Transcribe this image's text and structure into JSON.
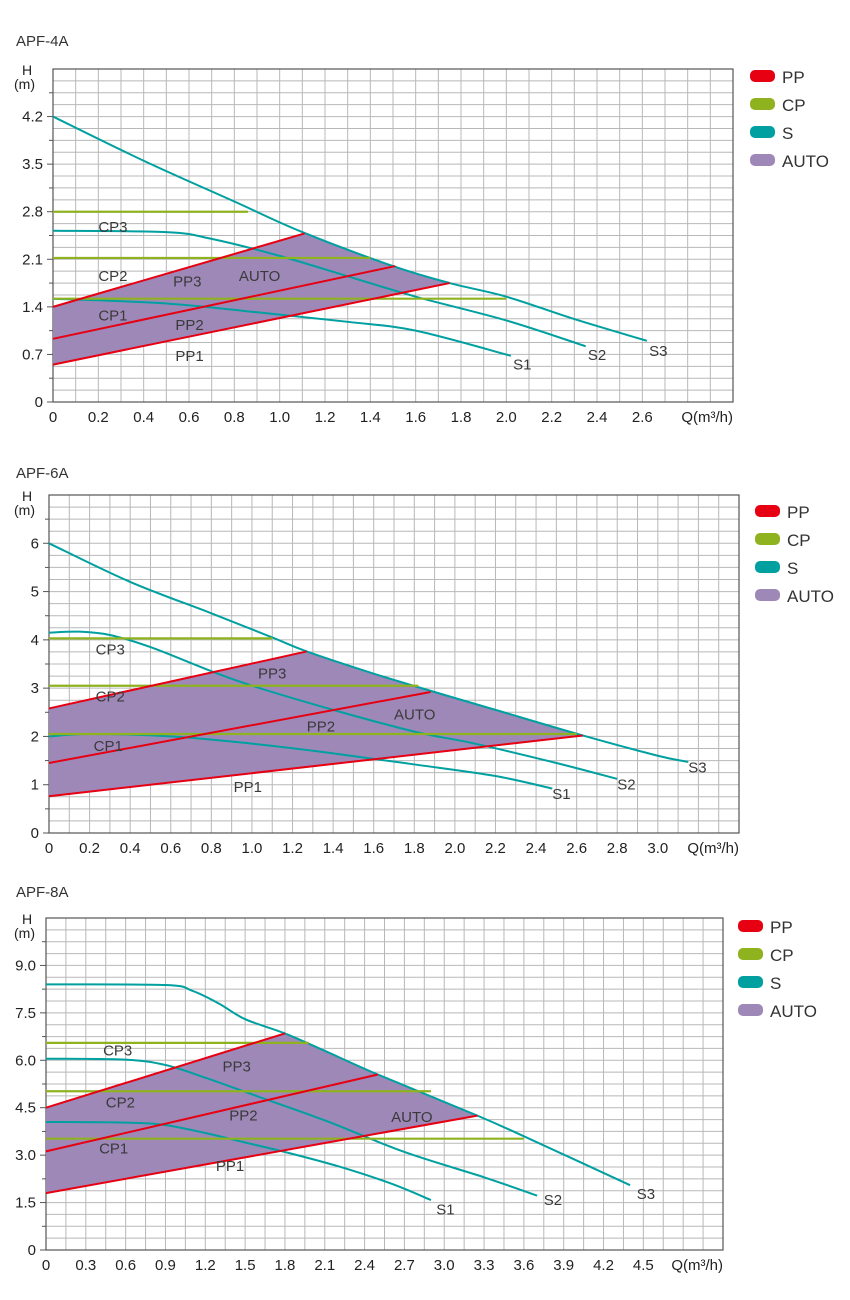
{
  "colors": {
    "PP": "#e60012",
    "CP": "#8fb21f",
    "S": "#00a0a0",
    "AUTO": "#9e88b8",
    "grid": "#b8b8b8",
    "axis": "#555555"
  },
  "legend": [
    {
      "key": "PP",
      "label": "PP"
    },
    {
      "key": "CP",
      "label": "CP"
    },
    {
      "key": "S",
      "label": "S"
    },
    {
      "key": "AUTO",
      "label": "AUTO"
    }
  ],
  "chart_data": [
    {
      "type": "line",
      "title": "APF-4A",
      "ylabel_top": "H",
      "ylabel_unit": "(m)",
      "xlabel": "Q(m³/h)",
      "xlim": [
        0,
        3.0
      ],
      "ylim": [
        0,
        4.9
      ],
      "grid": true,
      "legend_position": "right",
      "xticks": [
        "0",
        "0.2",
        "0.4",
        "0.6",
        "0.8",
        "1.0",
        "1.2",
        "1.4",
        "1.6",
        "1.8",
        "2.0",
        "2.2",
        "2.4",
        "2.6"
      ],
      "xtick_values": [
        0,
        0.2,
        0.4,
        0.6,
        0.8,
        1.0,
        1.2,
        1.4,
        1.6,
        1.8,
        2.0,
        2.2,
        2.4,
        2.6
      ],
      "yticks": [
        "0",
        "0.7",
        "1.4",
        "2.1",
        "2.8",
        "3.5",
        "4.2"
      ],
      "ytick_values": [
        0,
        0.7,
        1.4,
        2.1,
        2.8,
        3.5,
        4.2
      ],
      "grid_step_x": 0.1,
      "grid_step_y": 0.175,
      "auto_region": [
        [
          0,
          0.55
        ],
        [
          0,
          1.4
        ],
        [
          1.11,
          2.48
        ],
        [
          1.5,
          2.0
        ],
        [
          1.75,
          1.75
        ]
      ],
      "series": [
        {
          "name": "S3",
          "kind": "S",
          "points": [
            [
              0,
              4.2
            ],
            [
              0.4,
              3.55
            ],
            [
              0.8,
              2.95
            ],
            [
              1.1,
              2.5
            ],
            [
              1.5,
              2.0
            ],
            [
              1.75,
              1.75
            ],
            [
              2.0,
              1.55
            ],
            [
              2.3,
              1.22
            ],
            [
              2.62,
              0.9
            ]
          ]
        },
        {
          "name": "S2",
          "kind": "S",
          "points": [
            [
              0,
              2.52
            ],
            [
              0.5,
              2.5
            ],
            [
              0.7,
              2.4
            ],
            [
              1.0,
              2.15
            ],
            [
              1.3,
              1.85
            ],
            [
              1.6,
              1.55
            ],
            [
              2.0,
              1.2
            ],
            [
              2.35,
              0.82
            ]
          ]
        },
        {
          "name": "S1",
          "kind": "S",
          "points": [
            [
              0,
              1.52
            ],
            [
              0.5,
              1.45
            ],
            [
              0.9,
              1.32
            ],
            [
              1.3,
              1.18
            ],
            [
              1.6,
              1.05
            ],
            [
              2.02,
              0.68
            ]
          ]
        },
        {
          "name": "CP3",
          "kind": "CP",
          "points": [
            [
              0,
              2.8
            ],
            [
              0.86,
              2.8
            ]
          ]
        },
        {
          "name": "CP2",
          "kind": "CP",
          "points": [
            [
              0,
              2.12
            ],
            [
              1.4,
              2.12
            ]
          ]
        },
        {
          "name": "CP1",
          "kind": "CP",
          "points": [
            [
              0,
              1.52
            ],
            [
              2.0,
              1.52
            ]
          ]
        },
        {
          "name": "PP3",
          "kind": "PP",
          "points": [
            [
              0,
              1.4
            ],
            [
              1.11,
              2.48
            ]
          ]
        },
        {
          "name": "PP2",
          "kind": "PP",
          "points": [
            [
              0,
              0.93
            ],
            [
              1.51,
              2.0
            ]
          ]
        },
        {
          "name": "PP1",
          "kind": "PP",
          "points": [
            [
              0,
              0.55
            ],
            [
              1.75,
              1.75
            ]
          ]
        }
      ],
      "annotations": [
        {
          "text": "CP3",
          "x": 0.2,
          "y": 2.5
        },
        {
          "text": "CP2",
          "x": 0.2,
          "y": 1.78
        },
        {
          "text": "CP1",
          "x": 0.2,
          "y": 1.2
        },
        {
          "text": "PP3",
          "x": 0.53,
          "y": 1.7
        },
        {
          "text": "PP2",
          "x": 0.54,
          "y": 1.06
        },
        {
          "text": "PP1",
          "x": 0.54,
          "y": 0.6
        },
        {
          "text": "AUTO",
          "x": 0.82,
          "y": 1.78
        },
        {
          "text": "S1",
          "x": 2.03,
          "y": 0.48
        },
        {
          "text": "S2",
          "x": 2.36,
          "y": 0.62
        },
        {
          "text": "S3",
          "x": 2.63,
          "y": 0.68
        }
      ]
    },
    {
      "type": "line",
      "title": "APF-6A",
      "ylabel_top": "H",
      "ylabel_unit": "(m)",
      "xlabel": "Q(m³/h)",
      "xlim": [
        0,
        3.4
      ],
      "ylim": [
        0,
        7
      ],
      "grid": true,
      "legend_position": "right",
      "xticks": [
        "0",
        "0.2",
        "0.4",
        "0.6",
        "0.8",
        "1.0",
        "1.2",
        "1.4",
        "1.6",
        "1.8",
        "2.0",
        "2.2",
        "2.4",
        "2.6",
        "2.8",
        "3.0"
      ],
      "xtick_values": [
        0,
        0.2,
        0.4,
        0.6,
        0.8,
        1.0,
        1.2,
        1.4,
        1.6,
        1.8,
        2.0,
        2.2,
        2.4,
        2.6,
        2.8,
        3.0
      ],
      "yticks": [
        "0",
        "1",
        "2",
        "3",
        "4",
        "5",
        "6"
      ],
      "ytick_values": [
        0,
        1,
        2,
        3,
        4,
        5,
        6
      ],
      "grid_step_x": 0.1,
      "grid_step_y": 0.25,
      "auto_region": [
        [
          0,
          0.76
        ],
        [
          0,
          2.58
        ],
        [
          1.27,
          3.76
        ],
        [
          1.6,
          3.3
        ],
        [
          1.9,
          2.92
        ],
        [
          2.2,
          2.55
        ],
        [
          2.63,
          2.02
        ]
      ],
      "series": [
        {
          "name": "S3",
          "kind": "S",
          "points": [
            [
              0,
              6.0
            ],
            [
              0.4,
              5.2
            ],
            [
              0.8,
              4.55
            ],
            [
              1.1,
              4.05
            ],
            [
              1.27,
              3.76
            ],
            [
              1.6,
              3.3
            ],
            [
              1.9,
              2.92
            ],
            [
              2.2,
              2.55
            ],
            [
              2.63,
              2.02
            ],
            [
              3.0,
              1.6
            ],
            [
              3.15,
              1.47
            ]
          ]
        },
        {
          "name": "S2",
          "kind": "S",
          "points": [
            [
              0,
              4.15
            ],
            [
              0.15,
              4.17
            ],
            [
              0.3,
              4.1
            ],
            [
              0.5,
              3.85
            ],
            [
              0.8,
              3.35
            ],
            [
              1.0,
              3.05
            ],
            [
              1.4,
              2.55
            ],
            [
              1.8,
              2.1
            ],
            [
              2.1,
              1.85
            ],
            [
              2.5,
              1.45
            ],
            [
              2.8,
              1.12
            ]
          ]
        },
        {
          "name": "S1",
          "kind": "S",
          "points": [
            [
              0,
              2.0
            ],
            [
              0.2,
              2.05
            ],
            [
              0.6,
              2.0
            ],
            [
              1.0,
              1.85
            ],
            [
              1.4,
              1.65
            ],
            [
              1.8,
              1.42
            ],
            [
              2.2,
              1.18
            ],
            [
              2.48,
              0.92
            ]
          ]
        },
        {
          "name": "CP3",
          "kind": "CP",
          "points": [
            [
              0,
              4.03
            ],
            [
              1.1,
              4.03
            ]
          ]
        },
        {
          "name": "CP2",
          "kind": "CP",
          "points": [
            [
              0,
              3.05
            ],
            [
              1.82,
              3.05
            ]
          ]
        },
        {
          "name": "CP1",
          "kind": "CP",
          "points": [
            [
              0,
              2.05
            ],
            [
              2.6,
              2.05
            ]
          ]
        },
        {
          "name": "PP3",
          "kind": "PP",
          "points": [
            [
              0,
              2.58
            ],
            [
              1.27,
              3.76
            ]
          ]
        },
        {
          "name": "PP2",
          "kind": "PP",
          "points": [
            [
              0,
              1.45
            ],
            [
              1.88,
              2.92
            ]
          ]
        },
        {
          "name": "PP1",
          "kind": "PP",
          "points": [
            [
              0,
              0.76
            ],
            [
              2.63,
              2.02
            ]
          ]
        }
      ],
      "annotations": [
        {
          "text": "CP3",
          "x": 0.23,
          "y": 3.7
        },
        {
          "text": "CP2",
          "x": 0.23,
          "y": 2.72
        },
        {
          "text": "CP1",
          "x": 0.22,
          "y": 1.7
        },
        {
          "text": "PP3",
          "x": 1.03,
          "y": 3.2
        },
        {
          "text": "PP2",
          "x": 1.27,
          "y": 2.1
        },
        {
          "text": "PP1",
          "x": 0.91,
          "y": 0.85
        },
        {
          "text": "AUTO",
          "x": 1.7,
          "y": 2.35
        },
        {
          "text": "S1",
          "x": 2.48,
          "y": 0.7
        },
        {
          "text": "S2",
          "x": 2.8,
          "y": 0.9
        },
        {
          "text": "S3",
          "x": 3.15,
          "y": 1.25
        }
      ]
    },
    {
      "type": "line",
      "title": "APF-8A",
      "ylabel_top": "H",
      "ylabel_unit": "(m)",
      "xlabel": "Q(m³/h)",
      "xlim": [
        0,
        5.1
      ],
      "ylim": [
        0,
        10.5
      ],
      "grid": true,
      "legend_position": "right",
      "xticks": [
        "0",
        "0.3",
        "0.6",
        "0.9",
        "1.2",
        "1.5",
        "1.8",
        "2.1",
        "2.4",
        "2.7",
        "3.0",
        "3.3",
        "3.6",
        "3.9",
        "4.2",
        "4.5"
      ],
      "xtick_values": [
        0,
        0.3,
        0.6,
        0.9,
        1.2,
        1.5,
        1.8,
        2.1,
        2.4,
        2.7,
        3.0,
        3.3,
        3.6,
        3.9,
        4.2,
        4.5
      ],
      "yticks": [
        "0",
        "1.5",
        "3.0",
        "4.5",
        "6.0",
        "7.5",
        "9.0"
      ],
      "ytick_values": [
        0,
        1.5,
        3.0,
        4.5,
        6.0,
        7.5,
        9.0
      ],
      "grid_step_x": 0.15,
      "grid_step_y": 0.375,
      "auto_region": [
        [
          0,
          1.8
        ],
        [
          0,
          4.5
        ],
        [
          1.8,
          6.85
        ],
        [
          2.1,
          6.3
        ],
        [
          2.5,
          5.55
        ],
        [
          3.25,
          4.25
        ]
      ],
      "series": [
        {
          "name": "S3",
          "kind": "S",
          "points": [
            [
              0,
              8.4
            ],
            [
              0.9,
              8.38
            ],
            [
              1.1,
              8.2
            ],
            [
              1.3,
              7.8
            ],
            [
              1.5,
              7.3
            ],
            [
              1.8,
              6.85
            ],
            [
              2.1,
              6.3
            ],
            [
              2.5,
              5.55
            ],
            [
              3.25,
              4.25
            ],
            [
              3.65,
              3.5
            ],
            [
              4.4,
              2.05
            ]
          ]
        },
        {
          "name": "S2",
          "kind": "S",
          "points": [
            [
              0,
              6.05
            ],
            [
              0.6,
              6.02
            ],
            [
              0.9,
              5.85
            ],
            [
              1.2,
              5.45
            ],
            [
              1.6,
              4.85
            ],
            [
              2.1,
              4.1
            ],
            [
              2.7,
              3.1
            ],
            [
              3.3,
              2.3
            ],
            [
              3.7,
              1.72
            ]
          ]
        },
        {
          "name": "S1",
          "kind": "S",
          "points": [
            [
              0,
              4.05
            ],
            [
              0.6,
              4.03
            ],
            [
              0.9,
              3.95
            ],
            [
              1.2,
              3.7
            ],
            [
              1.5,
              3.4
            ],
            [
              1.8,
              3.1
            ],
            [
              2.2,
              2.65
            ],
            [
              2.6,
              2.1
            ],
            [
              2.9,
              1.58
            ]
          ]
        },
        {
          "name": "CP3",
          "kind": "CP",
          "points": [
            [
              0,
              6.55
            ],
            [
              1.98,
              6.55
            ]
          ]
        },
        {
          "name": "CP2",
          "kind": "CP",
          "points": [
            [
              0,
              5.02
            ],
            [
              2.9,
              5.02
            ]
          ]
        },
        {
          "name": "CP1",
          "kind": "CP",
          "points": [
            [
              0,
              3.52
            ],
            [
              3.6,
              3.52
            ]
          ]
        },
        {
          "name": "PP3",
          "kind": "PP",
          "points": [
            [
              0,
              4.5
            ],
            [
              1.8,
              6.85
            ]
          ]
        },
        {
          "name": "PP2",
          "kind": "PP",
          "points": [
            [
              0,
              3.12
            ],
            [
              2.5,
              5.55
            ]
          ]
        },
        {
          "name": "PP1",
          "kind": "PP",
          "points": [
            [
              0,
              1.8
            ],
            [
              3.25,
              4.25
            ]
          ]
        }
      ],
      "annotations": [
        {
          "text": "CP3",
          "x": 0.43,
          "y": 6.15
        },
        {
          "text": "CP2",
          "x": 0.45,
          "y": 4.5
        },
        {
          "text": "CP1",
          "x": 0.4,
          "y": 3.05
        },
        {
          "text": "PP3",
          "x": 1.33,
          "y": 5.65
        },
        {
          "text": "PP2",
          "x": 1.38,
          "y": 4.1
        },
        {
          "text": "PP1",
          "x": 1.28,
          "y": 2.5
        },
        {
          "text": "AUTO",
          "x": 2.6,
          "y": 4.05
        },
        {
          "text": "S1",
          "x": 2.94,
          "y": 1.12
        },
        {
          "text": "S2",
          "x": 3.75,
          "y": 1.42
        },
        {
          "text": "S3",
          "x": 4.45,
          "y": 1.62
        }
      ]
    }
  ]
}
